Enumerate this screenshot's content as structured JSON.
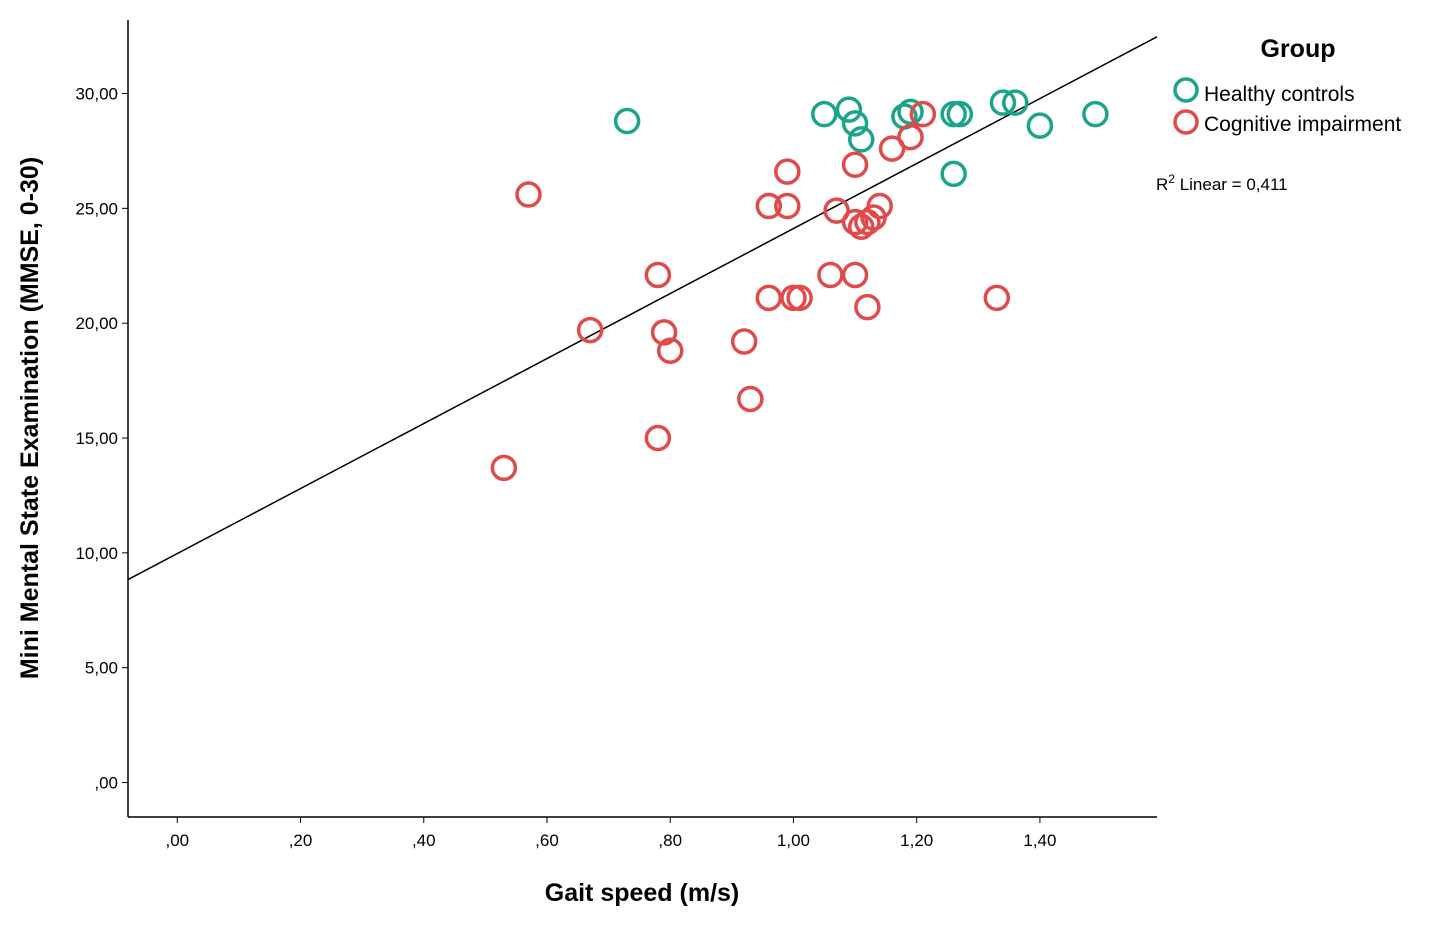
{
  "chart_data": {
    "type": "scatter",
    "title": "",
    "xlabel": "Gait speed (m/s)",
    "ylabel": "Mini Mental State Examination (MMSE, 0-30)",
    "xlim": [
      -0.08,
      1.59
    ],
    "ylim": [
      -1.5,
      33.2
    ],
    "x_ticks": [
      0,
      0.2,
      0.4,
      0.6,
      0.8,
      1.0,
      1.2,
      1.4
    ],
    "x_tick_labels": [
      ",00",
      ",20",
      ",40",
      ",60",
      ",80",
      "1,00",
      "1,20",
      "1,40"
    ],
    "y_ticks": [
      0,
      5,
      10,
      15,
      20,
      25,
      30
    ],
    "y_tick_labels": [
      ",00",
      "5,00",
      "10,00",
      "15,00",
      "20,00",
      "25,00",
      "30,00"
    ],
    "grid": false,
    "legend": {
      "title": "Group",
      "position": "right",
      "entries": [
        "Healthy controls",
        "Cognitive impairment"
      ]
    },
    "fit_line": {
      "label_prefix": "R",
      "label_sup": "2",
      "label_suffix": " Linear = 0,411",
      "intercept": 9.97,
      "slope": 14.15
    },
    "series": [
      {
        "name": "Healthy controls",
        "color": "#1aa58a",
        "points": [
          {
            "x": 0.73,
            "y": 28.8
          },
          {
            "x": 1.05,
            "y": 29.1
          },
          {
            "x": 1.09,
            "y": 29.3
          },
          {
            "x": 1.1,
            "y": 28.7
          },
          {
            "x": 1.11,
            "y": 28.0
          },
          {
            "x": 1.18,
            "y": 29.0
          },
          {
            "x": 1.19,
            "y": 29.2
          },
          {
            "x": 1.26,
            "y": 29.1
          },
          {
            "x": 1.27,
            "y": 29.1
          },
          {
            "x": 1.26,
            "y": 26.5
          },
          {
            "x": 1.34,
            "y": 29.6
          },
          {
            "x": 1.36,
            "y": 29.6
          },
          {
            "x": 1.4,
            "y": 28.6
          },
          {
            "x": 1.49,
            "y": 29.1
          }
        ]
      },
      {
        "name": "Cognitive impairment",
        "color": "#e04a4a",
        "points": [
          {
            "x": 0.53,
            "y": 13.7
          },
          {
            "x": 0.57,
            "y": 25.6
          },
          {
            "x": 0.67,
            "y": 19.7
          },
          {
            "x": 0.78,
            "y": 22.1
          },
          {
            "x": 0.78,
            "y": 15.0
          },
          {
            "x": 0.79,
            "y": 19.6
          },
          {
            "x": 0.8,
            "y": 18.8
          },
          {
            "x": 0.92,
            "y": 19.2
          },
          {
            "x": 0.93,
            "y": 16.7
          },
          {
            "x": 0.96,
            "y": 25.1
          },
          {
            "x": 0.96,
            "y": 21.1
          },
          {
            "x": 0.99,
            "y": 26.6
          },
          {
            "x": 0.99,
            "y": 25.1
          },
          {
            "x": 1.0,
            "y": 21.1
          },
          {
            "x": 1.01,
            "y": 21.1
          },
          {
            "x": 1.06,
            "y": 22.1
          },
          {
            "x": 1.07,
            "y": 24.9
          },
          {
            "x": 1.1,
            "y": 26.9
          },
          {
            "x": 1.1,
            "y": 24.4
          },
          {
            "x": 1.1,
            "y": 22.1
          },
          {
            "x": 1.11,
            "y": 24.2
          },
          {
            "x": 1.12,
            "y": 24.4
          },
          {
            "x": 1.12,
            "y": 20.7
          },
          {
            "x": 1.13,
            "y": 24.6
          },
          {
            "x": 1.14,
            "y": 25.1
          },
          {
            "x": 1.16,
            "y": 27.6
          },
          {
            "x": 1.19,
            "y": 28.1
          },
          {
            "x": 1.21,
            "y": 29.1
          },
          {
            "x": 1.33,
            "y": 21.1
          }
        ]
      }
    ]
  }
}
